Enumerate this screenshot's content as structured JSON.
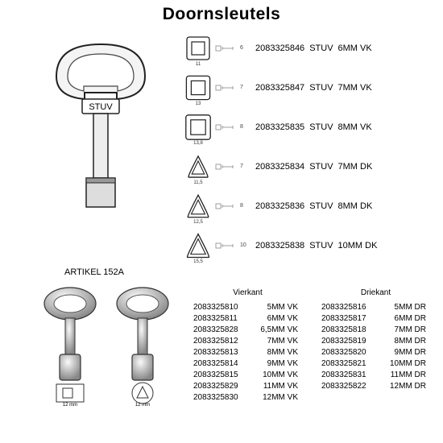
{
  "title": "Doornsleutels",
  "big_key_label": "STUV",
  "article_heading": "ARTIKEL 152A",
  "colors": {
    "bg": "#ffffff",
    "text": "#000000",
    "line": "#222222",
    "key_fill_light": "#eeeeee",
    "key_fill_mid": "#bbbbbb",
    "key_fill_dark": "#777777"
  },
  "profiles": [
    {
      "shape": "square",
      "dim": "11",
      "guide": "6",
      "code": "2083325846",
      "brand": "STUV",
      "desc": "6MM VK"
    },
    {
      "shape": "square",
      "dim": "13",
      "guide": "7",
      "code": "2083325847",
      "brand": "STUV",
      "desc": "7MM VK"
    },
    {
      "shape": "square",
      "dim": "13,8",
      "guide": "8",
      "code": "2083325835",
      "brand": "STUV",
      "desc": "8MM VK"
    },
    {
      "shape": "triangle",
      "dim": "11,5",
      "guide": "7",
      "code": "2083325834",
      "brand": "STUV",
      "desc": "7MM DK"
    },
    {
      "shape": "triangle",
      "dim": "12,5",
      "guide": "8",
      "code": "2083325836",
      "brand": "STUV",
      "desc": "8MM DK"
    },
    {
      "shape": "triangle",
      "dim": "15,5",
      "guide": "10",
      "code": "2083325838",
      "brand": "STUV",
      "desc": "10MM DK"
    }
  ],
  "vierkant": {
    "heading": "Vierkant",
    "rows": [
      {
        "code": "2083325810",
        "desc": "5MM VK"
      },
      {
        "code": "2083325811",
        "desc": "6MM VK"
      },
      {
        "code": "2083325828",
        "desc": "6,5MM VK"
      },
      {
        "code": "2083325812",
        "desc": "7MM VK"
      },
      {
        "code": "2083325813",
        "desc": "8MM VK"
      },
      {
        "code": "2083325814",
        "desc": "9MM VK"
      },
      {
        "code": "2083325815",
        "desc": "10MM VK"
      },
      {
        "code": "2083325829",
        "desc": "11MM VK"
      },
      {
        "code": "2083325830",
        "desc": "12MM VK"
      }
    ]
  },
  "driekant": {
    "heading": "Driekant",
    "rows": [
      {
        "code": "2083325816",
        "desc": "5MM DR"
      },
      {
        "code": "2083325817",
        "desc": "6MM DR"
      },
      {
        "code": "2083325818",
        "desc": "7MM DR"
      },
      {
        "code": "2083325819",
        "desc": "8MM DR"
      },
      {
        "code": "2083325820",
        "desc": "9MM DR"
      },
      {
        "code": "2083325821",
        "desc": "10MM DR"
      },
      {
        "code": "2083325831",
        "desc": "11MM DR"
      },
      {
        "code": "2083325822",
        "desc": "12MM DR"
      }
    ]
  },
  "small_key_labels": {
    "left": "12 mm",
    "right": "12 mm"
  }
}
